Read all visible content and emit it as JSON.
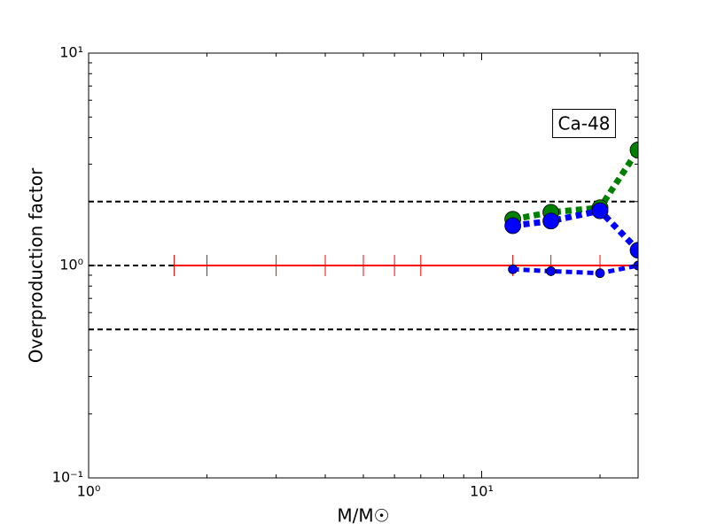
{
  "chart_data": {
    "type": "line",
    "xlabel": "M/M☉",
    "ylabel": "Overproduction factor",
    "annotation": "Ca-48",
    "log_x": true,
    "log_y": true,
    "xlim": [
      1,
      25
    ],
    "ylim": [
      0.1,
      10
    ],
    "xticks": [
      {
        "value": 1,
        "label": "10⁰"
      },
      {
        "value": 10,
        "label": "10¹"
      }
    ],
    "yticks": [
      {
        "value": 0.1,
        "label": "10⁻¹"
      },
      {
        "value": 1,
        "label": "10⁰"
      },
      {
        "value": 10,
        "label": "10¹"
      }
    ],
    "reference_lines": [
      0.5,
      1,
      2
    ],
    "series": [
      {
        "color": "#ff0000",
        "style": "solid",
        "marker": "vline",
        "x": [
          1.65,
          2,
          3,
          4,
          5,
          6,
          7,
          12,
          15,
          20,
          25
        ],
        "values": [
          1,
          1,
          1,
          1,
          1,
          1,
          1,
          1,
          1,
          1,
          1
        ]
      },
      {
        "color": "#008000",
        "style": "dotted",
        "marker": "big",
        "x": [
          12,
          15,
          20,
          25
        ],
        "values": [
          1.65,
          1.78,
          1.87,
          3.5
        ]
      },
      {
        "color": "#0000ff",
        "style": "dotted",
        "marker": "big",
        "x": [
          12,
          15,
          20,
          25
        ],
        "values": [
          1.54,
          1.62,
          1.81,
          1.18
        ]
      },
      {
        "color": "#0000ff",
        "style": "dotted",
        "marker": "small",
        "x": [
          12,
          15,
          20,
          25
        ],
        "values": [
          0.96,
          0.94,
          0.92,
          1.0
        ]
      }
    ]
  }
}
